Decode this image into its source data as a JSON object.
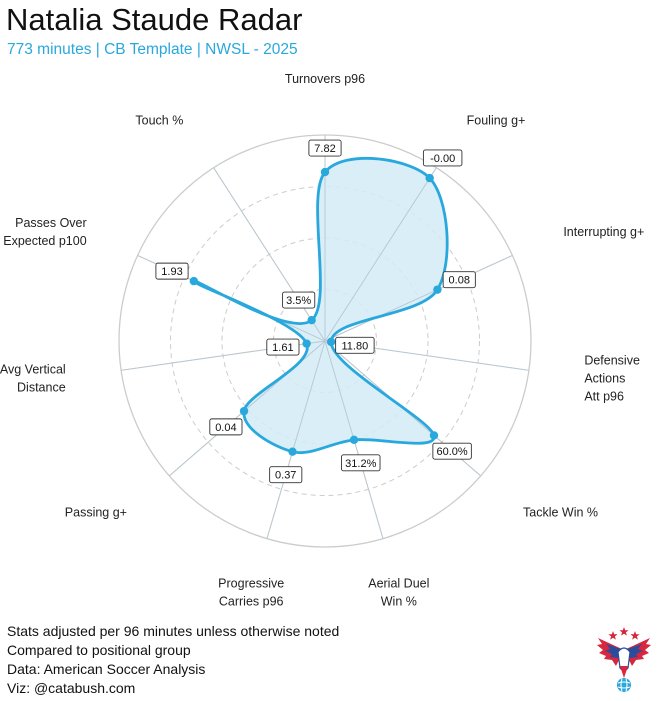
{
  "header": {
    "title": "Natalia Staude Radar",
    "subtitle": "773 minutes | CB Template | NWSL - 2025"
  },
  "chart_data": {
    "type": "radar",
    "title": "Natalia Staude Radar",
    "subtitle": "773 minutes | CB Template | NWSL - 2025",
    "grid": true,
    "percentile_range": [
      0,
      100
    ],
    "axes": [
      {
        "label": [
          "Progressive",
          "Carries p96"
        ],
        "percentile": 56,
        "value_label": "0.37"
      },
      {
        "label": [
          "Passing g+"
        ],
        "percentile": 52,
        "value_label": "0.04"
      },
      {
        "label": [
          "Avg Vertical",
          "Distance"
        ],
        "percentile": 9,
        "value_label": "1.61"
      },
      {
        "label": [
          "Passes Over",
          "Expected p100"
        ],
        "percentile": 70,
        "value_label": "1.93"
      },
      {
        "label": [
          "Touch %"
        ],
        "percentile": 12,
        "value_label": "3.5%"
      },
      {
        "label": [
          "Turnovers p96"
        ],
        "percentile": 82,
        "value_label": "7.82"
      },
      {
        "label": [
          "Fouling g+"
        ],
        "percentile": 94,
        "value_label": "-0.00"
      },
      {
        "label": [
          "Interrupting g+"
        ],
        "percentile": 60,
        "value_label": "0.08"
      },
      {
        "label": [
          "Defensive",
          "Actions",
          "Att p96"
        ],
        "percentile": 3,
        "value_label": "11.80"
      },
      {
        "label": [
          "Tackle Win %"
        ],
        "percentile": 70,
        "value_label": "60.0%"
      },
      {
        "label": [
          "Aerial Duel",
          "Win %"
        ],
        "percentile": 50,
        "value_label": "31.2%"
      }
    ],
    "colors": {
      "series": "#29a8dd",
      "fill": "#d3ebf7",
      "grid": "#cccccc",
      "accent_text": "#29a8dd"
    }
  },
  "footer": {
    "lines": [
      "Stats adjusted per 96 minutes unless otherwise noted",
      "Compared to positional group",
      "Data: American Soccer Analysis",
      "Viz: @catabush.com"
    ]
  },
  "logo": {
    "icon": "eagle-soccer-logo-icon"
  }
}
